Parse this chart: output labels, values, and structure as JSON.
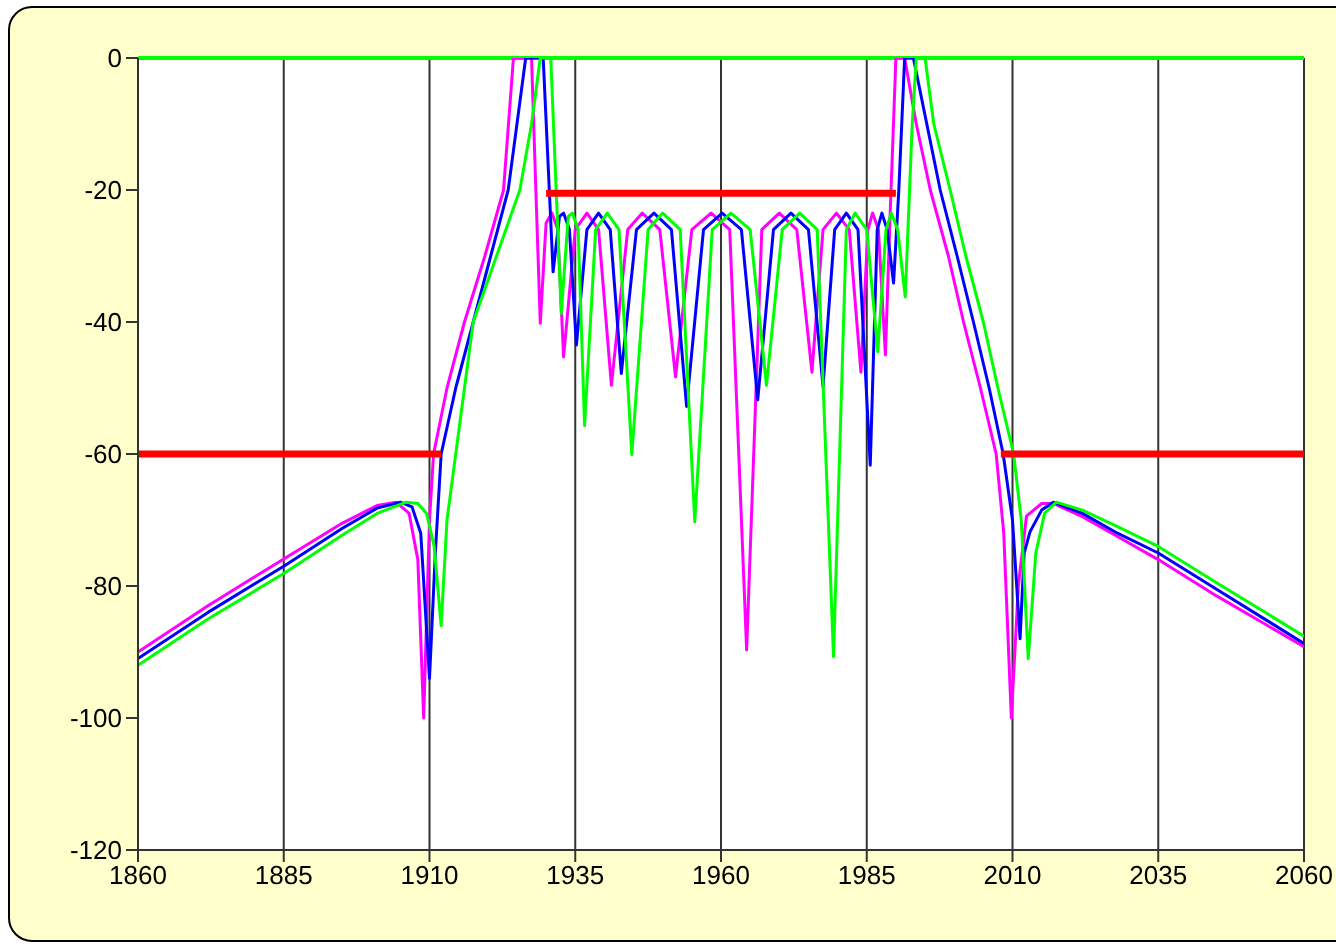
{
  "chart_data": {
    "type": "line",
    "xlim": [
      1860,
      2060
    ],
    "xticks": [
      1860,
      1885,
      1910,
      1935,
      1960,
      1985,
      2010,
      2035,
      2060
    ],
    "ylim": [
      -120,
      0
    ],
    "yticks": [
      -120,
      -100,
      -80,
      -60,
      -40,
      -20,
      0
    ],
    "grid": true,
    "legend": false,
    "marker": "none",
    "line_style": "solid",
    "ref_lines": [
      {
        "axis": "y",
        "value": 0,
        "color": "#00ff00"
      }
    ],
    "series": [
      {
        "color": "#ff00ff",
        "x": [
          1860,
          1872,
          1885,
          1895,
          1901,
          1904.3,
          1906.5,
          1908,
          1909,
          1910,
          1910.7,
          1913,
          1916,
          1919.5,
          1922.7,
          1924.4,
          1927.5,
          1929,
          1930,
          1931,
          1932,
          1933,
          1935,
          1937,
          1939,
          1941.2,
          1944,
          1946.5,
          1949.5,
          1952.2,
          1955,
          1958.3,
          1961.5,
          1964.4,
          1967,
          1970,
          1973,
          1975.6,
          1977.5,
          1979.8,
          1982,
          1984,
          1985.2,
          1986,
          1987,
          1988.2,
          1989,
          1990,
          1991.5,
          1993.5,
          1995.9,
          1999,
          2001.6,
          2004.5,
          2007.2,
          2008.5,
          2009.8,
          2011,
          2012.4,
          2015,
          2017,
          2022,
          2028,
          2035,
          2045,
          2060
        ],
        "values": [
          -90,
          -83,
          -75.9,
          -70.5,
          -67.8,
          -67.3,
          -69,
          -76,
          -100,
          -70,
          -60,
          -50,
          -40,
          -30,
          -20,
          0,
          0,
          -40.2,
          -25,
          -23.5,
          -26,
          -45.3,
          -26,
          -23.5,
          -26,
          -49.6,
          -26,
          -23.5,
          -26,
          -48.3,
          -26,
          -23.5,
          -26,
          -89.7,
          -26,
          -23.5,
          -26,
          -47.6,
          -26,
          -23.5,
          -26,
          -47.6,
          -26,
          -23.5,
          -26,
          -45,
          -24,
          0,
          0,
          -10,
          -20,
          -30,
          -40,
          -50,
          -60,
          -72,
          -100,
          -80,
          -69.4,
          -67.5,
          -67.5,
          -69.5,
          -72.5,
          -76,
          -81.5,
          -89.2
        ]
      },
      {
        "color": "#0000ff",
        "x": [
          1860,
          1872,
          1885,
          1895,
          1901,
          1905,
          1907,
          1908.5,
          1910,
          1911,
          1912,
          1914.5,
          1917.5,
          1920.5,
          1923.5,
          1926.5,
          1929.5,
          1931.2,
          1932.3,
          1933,
          1934,
          1935.2,
          1937,
          1939,
          1941,
          1942.9,
          1945.5,
          1948.5,
          1951.5,
          1954.1,
          1957,
          1960.2,
          1963.5,
          1966.3,
          1969,
          1972,
          1975,
          1977.5,
          1979.5,
          1981.5,
          1983.5,
          1985.6,
          1986.8,
          1987.6,
          1988.5,
          1989.6,
          1990.5,
          1991.5,
          1993,
          1995.3,
          1997.6,
          2000.5,
          2003.3,
          2006,
          2008.4,
          2010,
          2011.3,
          2012,
          2013,
          2015,
          2017,
          2022,
          2028,
          2035,
          2045,
          2060
        ],
        "values": [
          -91,
          -84,
          -77,
          -71.3,
          -68.2,
          -67.3,
          -68,
          -72,
          -94,
          -75,
          -60,
          -50,
          -40,
          -30,
          -20,
          0,
          0,
          -32.4,
          -24,
          -23.5,
          -26,
          -43.5,
          -26,
          -23.5,
          -26,
          -47.8,
          -26,
          -23.5,
          -26,
          -52.8,
          -26,
          -23.5,
          -26,
          -51.8,
          -26,
          -23.5,
          -26,
          -49.8,
          -26,
          -23.5,
          -26,
          -61.7,
          -26,
          -23.5,
          -26,
          -34.1,
          -20,
          0,
          0,
          -10,
          -20,
          -30,
          -40,
          -50,
          -60,
          -70,
          -88,
          -75,
          -71.8,
          -68.5,
          -67.3,
          -69,
          -72,
          -75,
          -80.5,
          -88.7
        ]
      },
      {
        "color": "#00ff00",
        "x": [
          1860,
          1872,
          1885,
          1895,
          1901,
          1906,
          1908,
          1909.5,
          1910.8,
          1912,
          1913,
          1914.5,
          1916,
          1917.5,
          1921.5,
          1925.5,
          1927.5,
          1929,
          1930.8,
          1932.6,
          1933.8,
          1934.5,
          1935.5,
          1936.6,
          1938.5,
          1940.5,
          1942.5,
          1944.7,
          1947.5,
          1950,
          1953,
          1955.5,
          1958.5,
          1961.7,
          1965,
          1967.8,
          1970.5,
          1973.5,
          1976.5,
          1979.3,
          1981.5,
          1983,
          1985,
          1986.9,
          1988.3,
          1989.2,
          1990.3,
          1991.6,
          1992.8,
          1993.5,
          1995,
          1996.5,
          1999.3,
          2002,
          2005,
          2007.5,
          2010.2,
          2011.5,
          2012.7,
          2014,
          2015.5,
          2017.5,
          2022,
          2028,
          2035,
          2045,
          2060
        ],
        "values": [
          -92,
          -85,
          -78.1,
          -72.3,
          -69,
          -67.3,
          -67.5,
          -69,
          -74,
          -86,
          -70,
          -60,
          -50,
          -40,
          -30,
          -20,
          -10,
          0,
          0,
          -38.7,
          -24,
          -23.5,
          -26,
          -55.7,
          -26,
          -23.5,
          -26,
          -60.1,
          -26,
          -23.5,
          -26,
          -70.3,
          -26,
          -23.5,
          -26,
          -49.6,
          -26,
          -23.5,
          -26,
          -90.7,
          -26,
          -23.5,
          -26,
          -44.5,
          -26,
          -23.5,
          -26,
          -36.2,
          -10,
          0,
          0,
          -10,
          -20,
          -30,
          -40,
          -50,
          -60,
          -70,
          -91,
          -75,
          -69,
          -67.3,
          -68.5,
          -71,
          -74,
          -79.5,
          -87.6
        ]
      },
      {
        "color": "#ff0000",
        "x": [
          1860,
          1912
        ],
        "values": [
          -60,
          -60
        ]
      },
      {
        "color": "#ff0000",
        "x": [
          1930,
          1990
        ],
        "values": [
          -20.5,
          -20.5
        ]
      },
      {
        "color": "#ff0000",
        "x": [
          2008,
          2060
        ],
        "values": [
          -60,
          -60
        ]
      }
    ]
  }
}
